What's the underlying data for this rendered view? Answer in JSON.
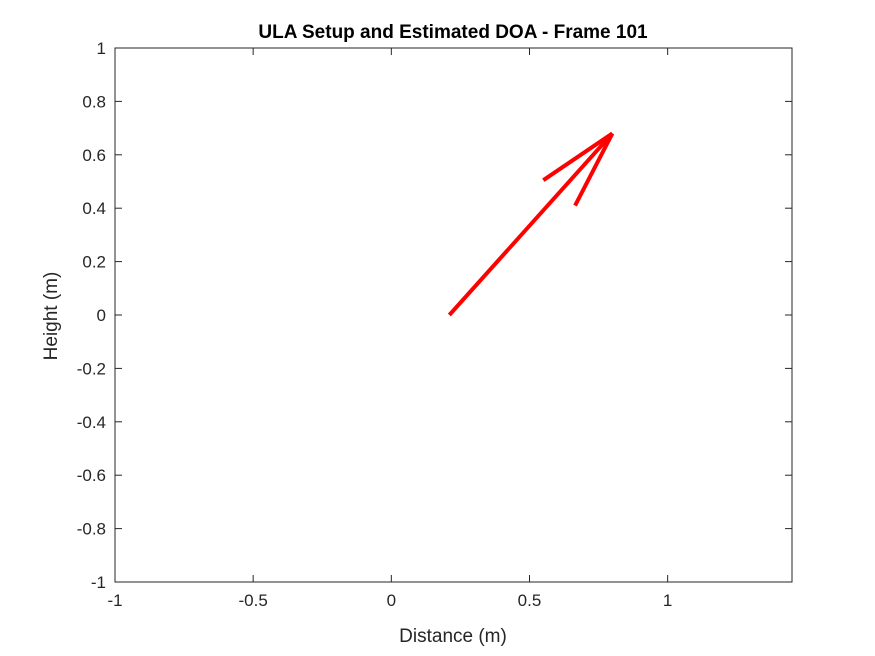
{
  "chart_data": {
    "type": "line",
    "title": "ULA Setup and Estimated DOA - Frame 101",
    "xlabel": "Distance (m)",
    "ylabel": "Height (m)",
    "xlim": [
      -1,
      1.45
    ],
    "ylim": [
      -1,
      1
    ],
    "xticks": [
      -1,
      -0.5,
      0,
      0.5,
      1
    ],
    "xtick_labels": [
      "-1",
      "-0.5",
      "0",
      "0.5",
      "1"
    ],
    "yticks": [
      -1,
      -0.8,
      -0.6,
      -0.4,
      -0.2,
      0,
      0.2,
      0.4,
      0.6,
      0.8,
      1
    ],
    "ytick_labels": [
      "-1",
      "-0.8",
      "-0.6",
      "-0.4",
      "-0.2",
      "0",
      "0.2",
      "0.4",
      "0.6",
      "0.8",
      "1"
    ],
    "grid": false,
    "color": "#ff0000",
    "series": [
      {
        "kind": "arrow",
        "start": [
          0.21,
          0.0
        ],
        "end": [
          0.8,
          0.68
        ],
        "head_left": [
          0.55,
          0.505
        ],
        "head_right": [
          0.665,
          0.41
        ]
      }
    ]
  }
}
